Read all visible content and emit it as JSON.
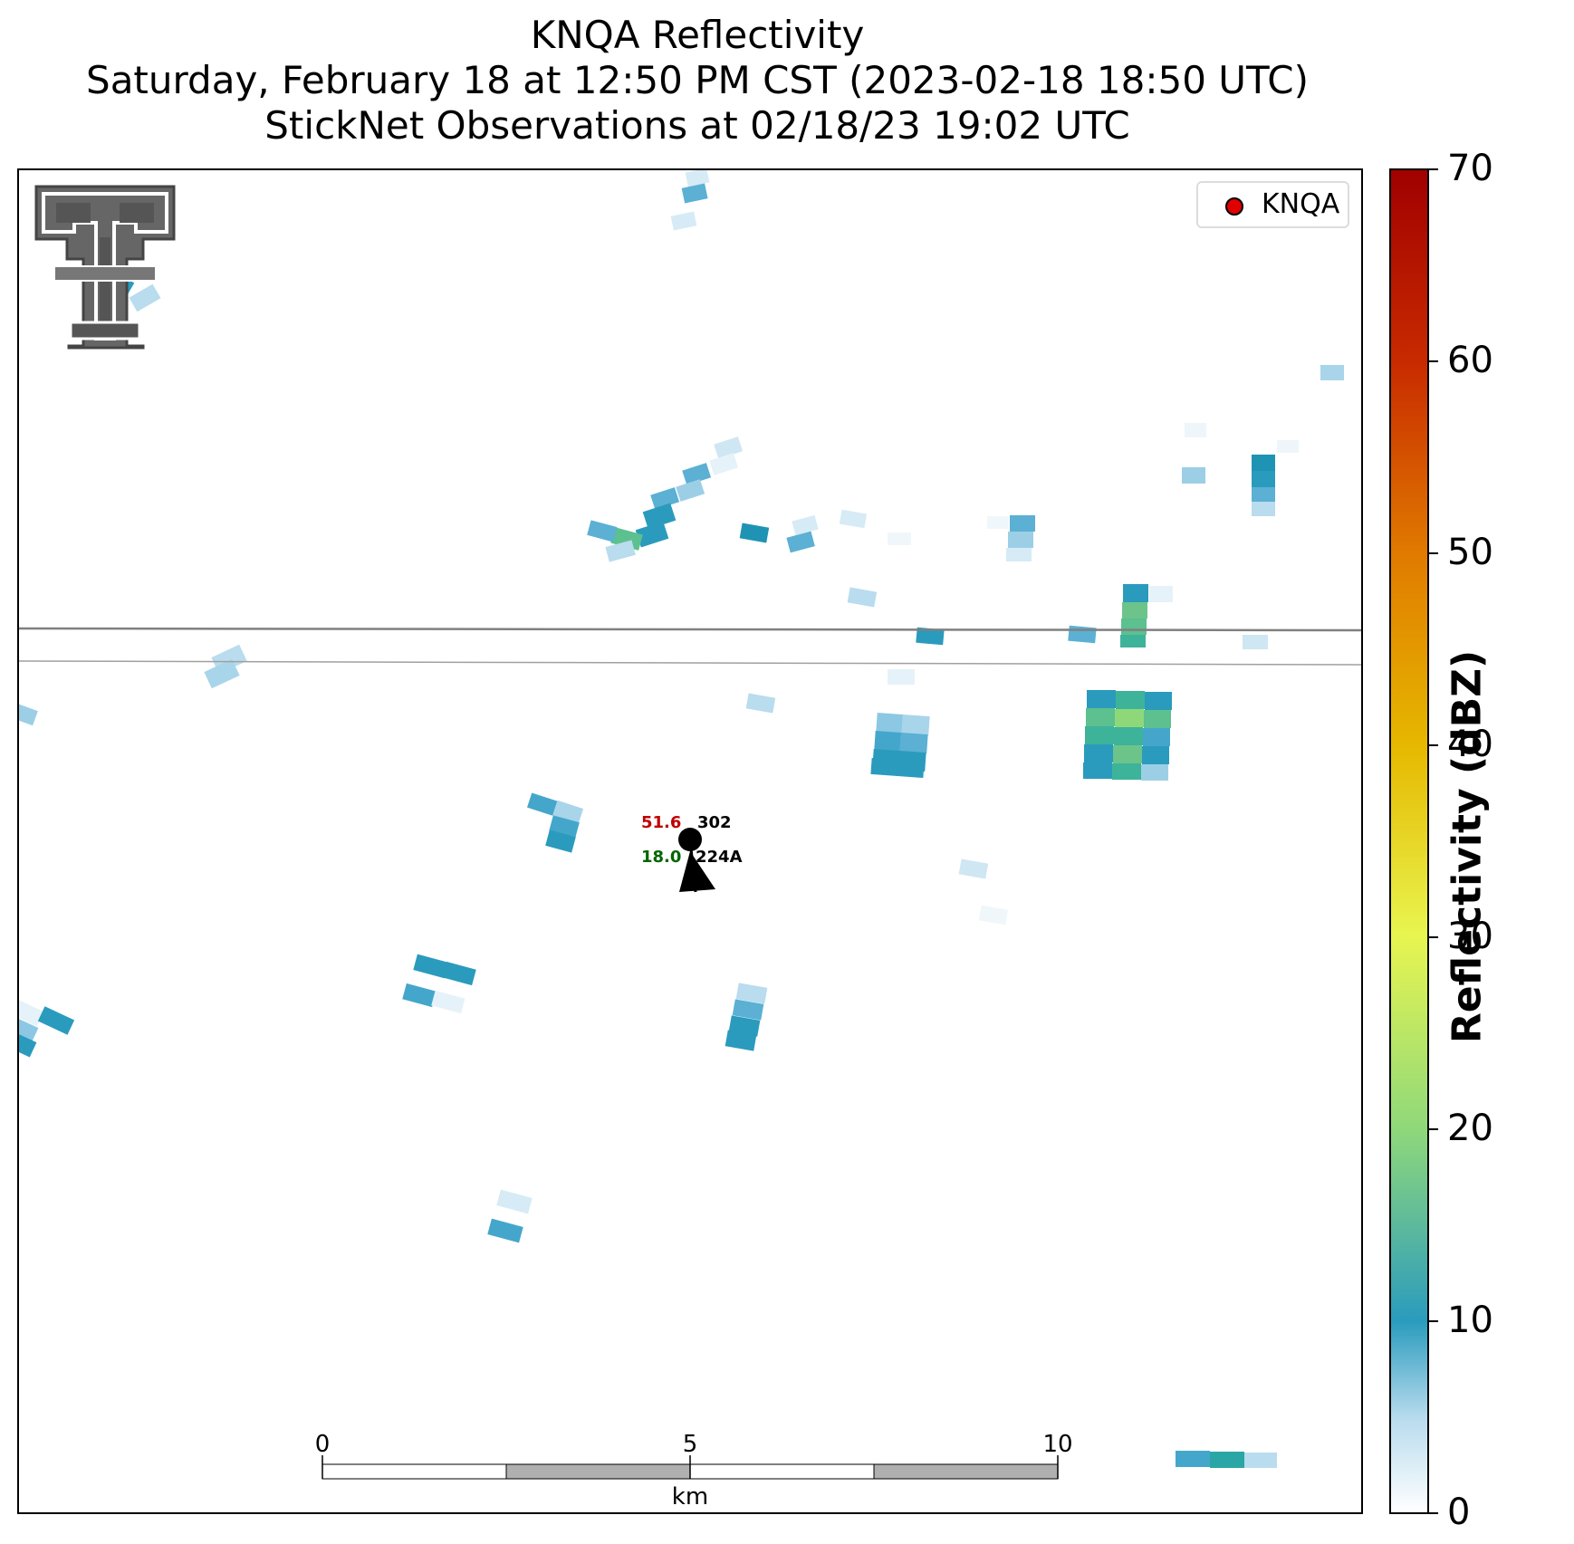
{
  "title": {
    "line1": "KNQA Reflectivity",
    "line2": "Saturday, February 18 at 12:50 PM CST (2023-02-18 18:50 UTC)",
    "line3": "StickNet Observations at 02/18/23 19:02 UTC"
  },
  "legend": {
    "label": "KNQA",
    "marker_color": "#e00000"
  },
  "colorbar": {
    "label": "Reflectivity (dBZ)",
    "ticks": [
      "0",
      "10",
      "20",
      "30",
      "40",
      "50",
      "60",
      "70"
    ],
    "colors": [
      "#ffffff",
      "#2a9bbd",
      "#8fd87a",
      "#e8f550",
      "#e6b800",
      "#e07a00",
      "#c82a00",
      "#a00000"
    ]
  },
  "scale_bar": {
    "ticks": [
      "0",
      "5",
      "10"
    ],
    "unit": "km"
  },
  "station": {
    "temperature": "51.6",
    "pressure": "302",
    "dewpoint": "18.0",
    "station_id": "224A",
    "temperature_color": "#c00000",
    "dewpoint_color": "#006600"
  },
  "logo": {
    "name": "texas-tech-double-t-logo"
  }
}
